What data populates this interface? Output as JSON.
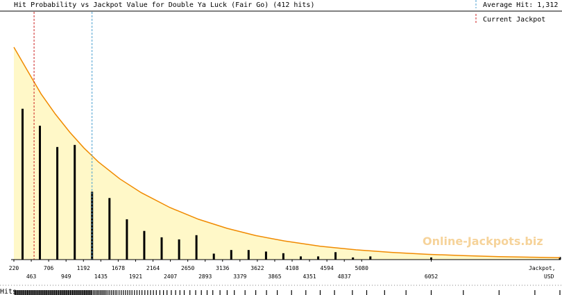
{
  "chart_data": {
    "type": "bar",
    "title": "Hit Probability vs Jackpot Value for Double Ya Luck (Fair Go) (412 hits)",
    "xlabel": "Jackpot,",
    "xunit": "USD",
    "hits_label": "Hits",
    "watermark": "Online-Jackpots.biz",
    "xlim": [
      220,
      7850
    ],
    "ylim": [
      0,
      1
    ],
    "tick_labels_upper": [
      "220",
      "706",
      "1192",
      "1678",
      "2164",
      "2650",
      "3136",
      "3622",
      "4108",
      "4594",
      "5080"
    ],
    "tick_labels_lower": [
      "463",
      "949",
      "1435",
      "1921",
      "2407",
      "2893",
      "3379",
      "3865",
      "4351",
      "4837",
      "6052"
    ],
    "tick_values_upper": [
      220,
      706,
      1192,
      1678,
      2164,
      2650,
      3136,
      3622,
      4108,
      4594,
      5080
    ],
    "tick_values_lower": [
      463,
      949,
      1435,
      1921,
      2407,
      2893,
      3379,
      3865,
      4351,
      4837,
      6052
    ],
    "bars": {
      "x": [
        341,
        584,
        827,
        1070,
        1313,
        1556,
        1799,
        2042,
        2285,
        2528,
        2771,
        3014,
        3257,
        3500,
        3743,
        3986,
        4229,
        4472,
        4715,
        4958,
        5201,
        6052,
        7850
      ],
      "values": [
        0.71,
        0.63,
        0.53,
        0.54,
        0.32,
        0.29,
        0.19,
        0.135,
        0.105,
        0.095,
        0.115,
        0.028,
        0.045,
        0.045,
        0.038,
        0.03,
        0.015,
        0.015,
        0.035,
        0.01,
        0.015,
        0.01,
        0.012
      ]
    },
    "curve": {
      "x": [
        220,
        400,
        600,
        800,
        1000,
        1200,
        1400,
        1700,
        2000,
        2400,
        2800,
        3200,
        3600,
        4000,
        4500,
        5000,
        5500,
        6000,
        6500,
        7000,
        7500,
        7850
      ],
      "values": [
        1.0,
        0.895,
        0.78,
        0.685,
        0.6,
        0.525,
        0.46,
        0.38,
        0.315,
        0.245,
        0.19,
        0.147,
        0.113,
        0.088,
        0.063,
        0.046,
        0.034,
        0.025,
        0.019,
        0.014,
        0.011,
        0.009
      ]
    },
    "average_hit": {
      "label": "Average Hit: 1,312",
      "x": 1312
    },
    "current_jackpot": {
      "label": "Current Jackpot",
      "x": 502
    },
    "hits": [
      230,
      245,
      260,
      275,
      290,
      305,
      320,
      335,
      350,
      365,
      380,
      395,
      410,
      425,
      440,
      455,
      470,
      485,
      500,
      515,
      530,
      545,
      560,
      575,
      590,
      605,
      620,
      635,
      650,
      665,
      680,
      695,
      710,
      725,
      740,
      755,
      770,
      785,
      800,
      815,
      830,
      845,
      860,
      875,
      890,
      905,
      920,
      935,
      950,
      965,
      980,
      995,
      1010,
      1025,
      1040,
      1055,
      1070,
      1085,
      1100,
      1115,
      1130,
      1145,
      1160,
      1175,
      1190,
      1205,
      1220,
      1235,
      1250,
      1265,
      1280,
      1295,
      1310,
      1330,
      1350,
      1370,
      1390,
      1410,
      1430,
      1450,
      1470,
      1490,
      1510,
      1535,
      1560,
      1585,
      1610,
      1635,
      1660,
      1690,
      1720,
      1750,
      1780,
      1810,
      1840,
      1870,
      1905,
      1940,
      1975,
      2010,
      2050,
      2090,
      2130,
      2170,
      2210,
      2260,
      2310,
      2360,
      2420,
      2480,
      2540,
      2600,
      2680,
      2760,
      2840,
      2920,
      3000,
      3100,
      3200,
      3300,
      3450,
      3600,
      3750,
      3900,
      4100,
      4300,
      4500,
      4700,
      4950,
      5150,
      5400,
      5700,
      6052,
      6500,
      7000,
      7500,
      7850
    ]
  },
  "colors": {
    "fill": "#fff8c8",
    "curve": "#f08a00",
    "bar": "#000000",
    "average_line": "#4a9fd0",
    "current_line": "#cc2020",
    "watermark": "#f6d39a"
  }
}
